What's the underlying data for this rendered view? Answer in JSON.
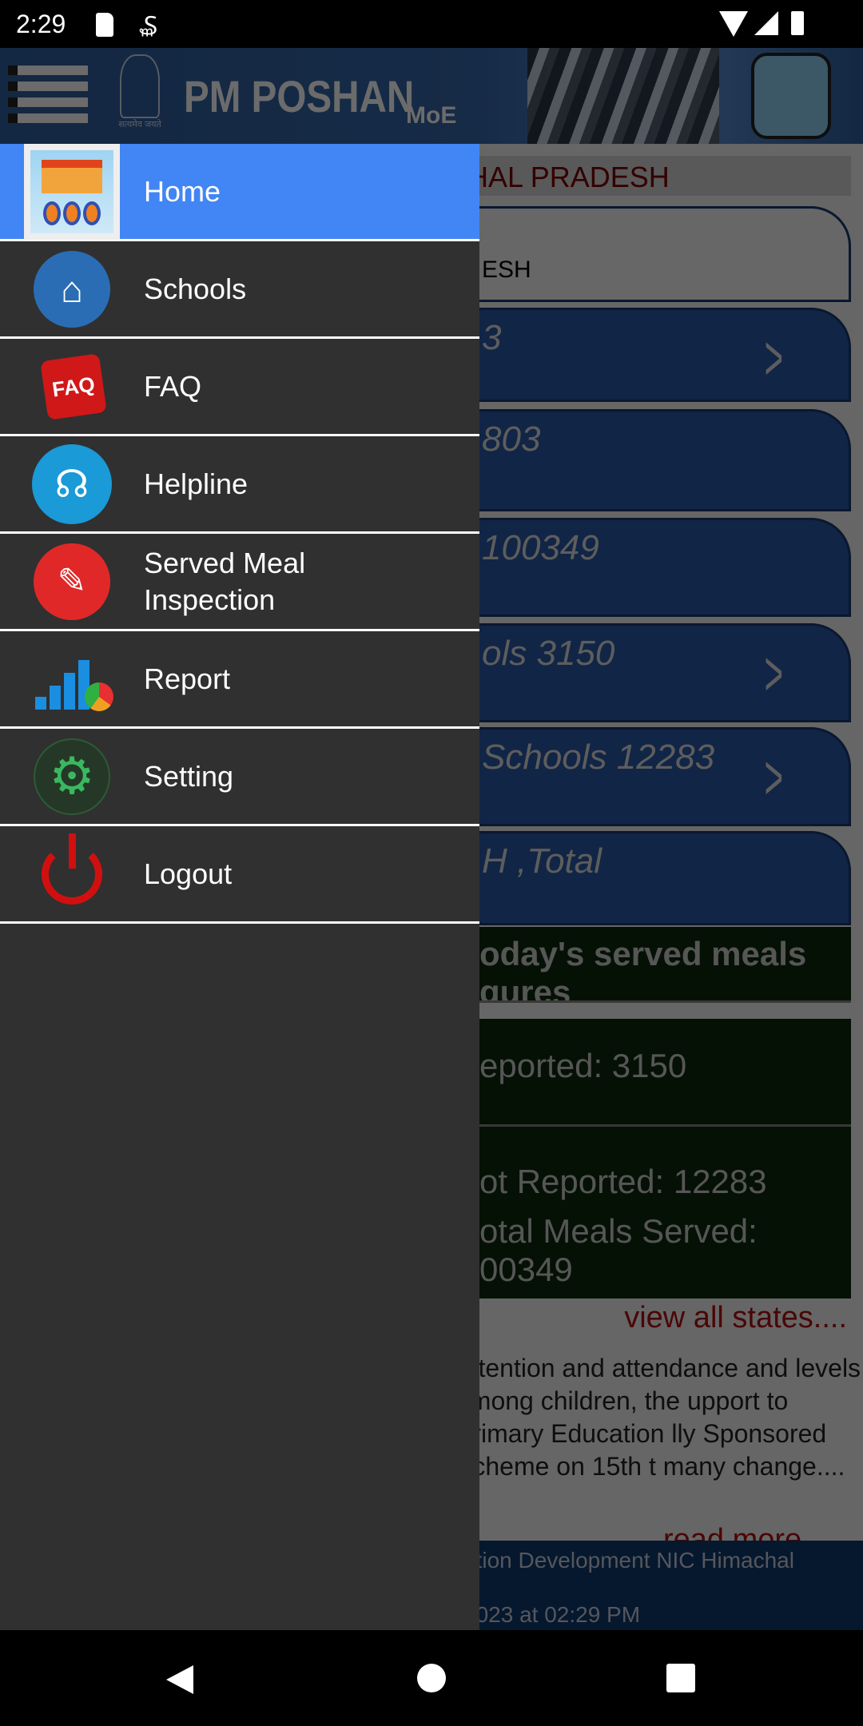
{
  "status_bar": {
    "time": "2:29"
  },
  "header": {
    "title": "PM POSHAN",
    "subtitle": "MoE",
    "emblem_text": "सत्यमेव जयते"
  },
  "drawer": {
    "items": [
      {
        "label": "Home",
        "icon": "school-icon",
        "selected": true
      },
      {
        "label": "Schools",
        "icon": "book-house-icon"
      },
      {
        "label": "FAQ",
        "icon": "faq-cube-icon"
      },
      {
        "label": "Helpline",
        "icon": "headset-icon"
      },
      {
        "label": "Served Meal Inspection",
        "icon": "inspection-icon"
      },
      {
        "label": "Report",
        "icon": "report-chart-icon"
      },
      {
        "label": "Setting",
        "icon": "gear-icon"
      },
      {
        "label": "Logout",
        "icon": "power-icon"
      }
    ]
  },
  "background": {
    "state": "HAL PRADESH",
    "state_card": "ESH",
    "cards": [
      "3",
      "803",
      "100349",
      "ols  3150",
      "Schools  12283",
      "H ,Total"
    ],
    "meals_title": "oday's served meals gures",
    "reported": "eported: 3150",
    "not_reported": "ot Reported: 12283",
    "total": "otal Meals Served: 00349",
    "view_all": "view all states....",
    "paragraph": "retention and attendance and levels among children, the upport to Primary Education lly Sponsored Scheme on 15th t many change....",
    "read_more": "read more",
    "footer_line1": "ation Development NIC Himachal",
    "footer_line2": "2023 at 02:29 PM"
  },
  "colors": {
    "accent": "#4285f4",
    "drawer_bg": "#303030",
    "header_bg": "#3566a8"
  }
}
